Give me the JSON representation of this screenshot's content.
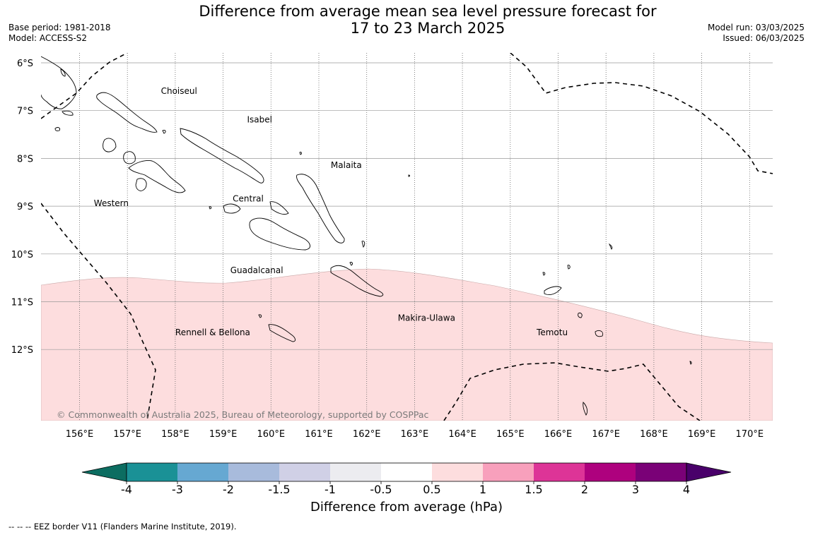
{
  "title": {
    "line1": "Difference from average mean sea level pressure forecast for",
    "line2": "17 to 23 March 2025"
  },
  "meta": {
    "base_period": "Base period: 1981-2018",
    "model": "Model: ACCESS-S2",
    "model_run": "Model run: 03/03/2025",
    "issued": "Issued: 06/03/2025"
  },
  "map": {
    "lat_labels": [
      "6°S",
      "7°S",
      "8°S",
      "9°S",
      "10°S",
      "11°S",
      "12°S"
    ],
    "lon_labels": [
      "156°E",
      "157°E",
      "158°E",
      "159°E",
      "160°E",
      "161°E",
      "162°E",
      "163°E",
      "164°E",
      "165°E",
      "166°E",
      "167°E",
      "168°E",
      "169°E",
      "170°E"
    ],
    "lat_values": [
      -6,
      -7,
      -8,
      -9,
      -10,
      -11,
      -12
    ],
    "lon_values": [
      156,
      157,
      158,
      159,
      160,
      161,
      162,
      163,
      164,
      165,
      166,
      167,
      168,
      169,
      170
    ],
    "extent": {
      "lon_min": 155.2,
      "lon_max": 170.5,
      "lat_min": -13.5,
      "lat_max": -5.8
    },
    "provinces": [
      {
        "name": "Choiseul",
        "lon": 157.7,
        "lat": -6.65
      },
      {
        "name": "Isabel",
        "lon": 159.5,
        "lat": -7.25
      },
      {
        "name": "Malaita",
        "lon": 161.25,
        "lat": -8.2
      },
      {
        "name": "Western",
        "lon": 156.3,
        "lat": -9.0
      },
      {
        "name": "Central",
        "lon": 159.2,
        "lat": -8.9
      },
      {
        "name": "Guadalcanal",
        "lon": 159.15,
        "lat": -10.4
      },
      {
        "name": "Makira-Ulawa",
        "lon": 162.65,
        "lat": -11.4
      },
      {
        "name": "Rennell & Bellona",
        "lon": 158.0,
        "lat": -11.7
      },
      {
        "name": "Temotu",
        "lon": 165.55,
        "lat": -11.7
      }
    ],
    "anomaly_region_color": "#fdddde",
    "copyright": "© Commonwealth of Australia 2025, Bureau of Meteorology, supported by COSPPac"
  },
  "colorbar": {
    "title": "Difference from average (hPa)",
    "tick_labels": [
      "-4",
      "-3",
      "-2",
      "-1.5",
      "-1",
      "-0.5",
      "0.5",
      "1",
      "1.5",
      "2",
      "3",
      "4"
    ],
    "colors": [
      "#1a9196",
      "#66a8d2",
      "#a8bbdc",
      "#d0d0e6",
      "#ececf0",
      "#ffffff",
      "#fdddde",
      "#f8a0bc",
      "#dd3497",
      "#ae017e",
      "#7a0177"
    ],
    "under_color": "#0c6d61",
    "over_color": "#49006a"
  },
  "footnote": "--  --  -- EEZ border V11 (Flanders Marine Institute, 2019)."
}
